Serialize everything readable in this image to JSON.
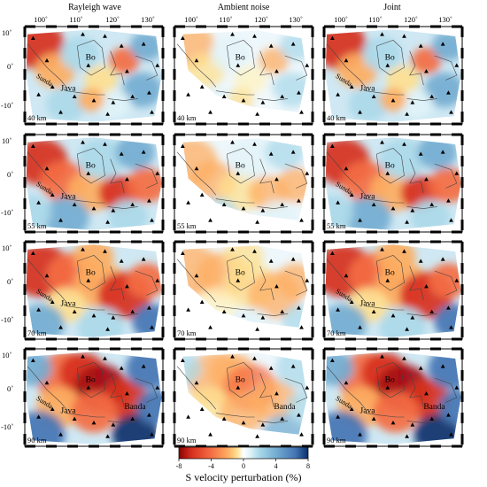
{
  "columns": [
    {
      "title": "Rayleigh wave",
      "key": "rayleigh"
    },
    {
      "title": "Ambient noise",
      "key": "ambient"
    },
    {
      "title": "Joint",
      "key": "joint"
    }
  ],
  "rows": [
    {
      "depth": "40 km"
    },
    {
      "depth": "55 km"
    },
    {
      "depth": "70 km"
    },
    {
      "depth": "90 km"
    }
  ],
  "lon_ticks": [
    "100˚",
    "110˚",
    "120˚",
    "130˚"
  ],
  "lat_ticks": [
    "10˚",
    "0˚",
    "-10˚"
  ],
  "place_labels": {
    "sunda": "Sunda",
    "java": "Java",
    "borneo": "Bo",
    "banda": "Banda"
  },
  "colorbar": {
    "label": "S velocity perturbation (%)",
    "ticks": [
      "-8",
      "-4",
      "0",
      "4",
      "8"
    ],
    "min": -8,
    "max": 8,
    "colors": [
      "#8b0000",
      "#d7301f",
      "#f46d43",
      "#fdae61",
      "#fee090",
      "#ffffff",
      "#e0f3f8",
      "#abd9e9",
      "#74add1",
      "#4575b4",
      "#08306b"
    ]
  }
}
